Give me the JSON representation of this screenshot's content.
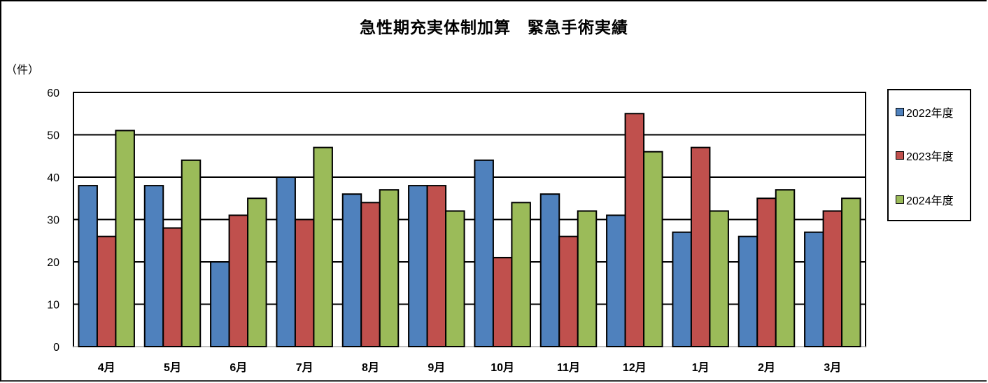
{
  "title": "急性期充実体制加算　緊急手術実績",
  "y_unit_label": "（件）",
  "legend": [
    {
      "label": "2022年度",
      "color": "#4f81bd"
    },
    {
      "label": "2023年度",
      "color": "#c0504d"
    },
    {
      "label": "2024年度",
      "color": "#9bbb59"
    }
  ],
  "chart_data": {
    "type": "bar",
    "title": "急性期充実体制加算　緊急手術実績",
    "xlabel": "",
    "ylabel": "（件）",
    "ylim": [
      0,
      60
    ],
    "yticks": [
      0,
      10,
      20,
      30,
      40,
      50,
      60
    ],
    "grid": true,
    "legend_position": "right",
    "categories": [
      "4月",
      "5月",
      "6月",
      "7月",
      "8月",
      "9月",
      "10月",
      "11月",
      "12月",
      "1月",
      "2月",
      "3月"
    ],
    "series": [
      {
        "name": "2022年度",
        "color": "#4f81bd",
        "values": [
          38,
          38,
          20,
          40,
          36,
          38,
          44,
          36,
          31,
          27,
          26,
          27
        ]
      },
      {
        "name": "2023年度",
        "color": "#c0504d",
        "values": [
          26,
          28,
          31,
          30,
          34,
          38,
          21,
          26,
          55,
          47,
          35,
          32
        ]
      },
      {
        "name": "2024年度",
        "color": "#9bbb59",
        "values": [
          51,
          44,
          35,
          47,
          37,
          32,
          34,
          32,
          46,
          32,
          37,
          35
        ]
      }
    ]
  }
}
